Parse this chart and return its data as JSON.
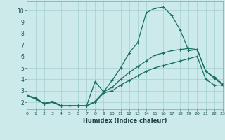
{
  "x": [
    0,
    1,
    2,
    3,
    4,
    5,
    6,
    7,
    8,
    9,
    10,
    11,
    12,
    13,
    14,
    15,
    16,
    17,
    18,
    19,
    20,
    21,
    22,
    23
  ],
  "line1": [
    2.6,
    2.4,
    1.9,
    2.1,
    1.7,
    1.7,
    1.7,
    1.7,
    3.8,
    2.9,
    3.9,
    5.0,
    6.3,
    7.2,
    9.8,
    10.2,
    10.3,
    9.6,
    8.3,
    6.5,
    6.6,
    4.7,
    4.2,
    3.6
  ],
  "line2": [
    2.6,
    2.3,
    1.9,
    2.0,
    1.7,
    1.7,
    1.7,
    1.7,
    2.1,
    2.9,
    3.3,
    4.0,
    4.6,
    5.1,
    5.6,
    6.1,
    6.3,
    6.5,
    6.6,
    6.7,
    6.6,
    4.7,
    4.1,
    3.5
  ],
  "line3": [
    2.6,
    2.3,
    1.9,
    2.0,
    1.7,
    1.7,
    1.7,
    1.7,
    2.0,
    2.8,
    3.0,
    3.5,
    3.9,
    4.3,
    4.7,
    5.0,
    5.2,
    5.4,
    5.6,
    5.8,
    6.0,
    4.0,
    3.5,
    3.5
  ],
  "bg_color": "#cceaea",
  "grid_color": "#aad4d4",
  "line_color": "#1a7060",
  "xlabel": "Humidex (Indice chaleur)",
  "xlim": [
    0,
    23
  ],
  "ylim": [
    1.4,
    10.8
  ],
  "yticks": [
    2,
    3,
    4,
    5,
    6,
    7,
    8,
    9,
    10
  ],
  "xticks": [
    0,
    1,
    2,
    3,
    4,
    5,
    6,
    7,
    8,
    9,
    10,
    11,
    12,
    13,
    14,
    15,
    16,
    17,
    18,
    19,
    20,
    21,
    22,
    23
  ]
}
